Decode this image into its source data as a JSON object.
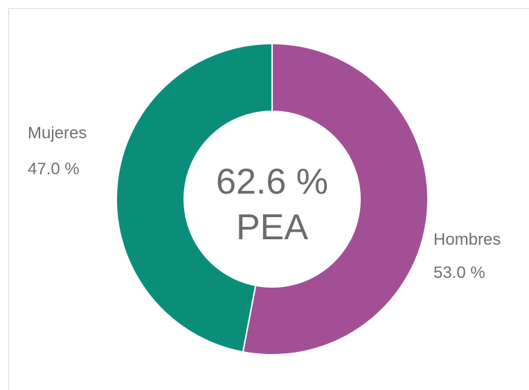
{
  "chart_data": {
    "type": "pie",
    "donut": true,
    "center_value": "62.6 %",
    "center_label": "PEA",
    "slices": [
      {
        "label": "Hombres",
        "value": 53.0,
        "value_text": "53.0 %",
        "color": "#a34f95"
      },
      {
        "label": "Mujeres",
        "value": 47.0,
        "value_text": "47.0 %",
        "color": "#0a8e7a"
      }
    ],
    "start_angle_deg": 0,
    "direction": "clockwise",
    "legend": "none"
  }
}
